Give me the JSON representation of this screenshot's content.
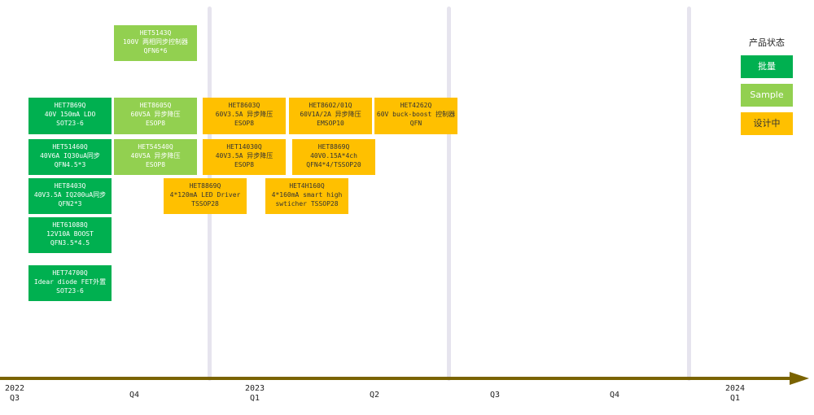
{
  "legend": {
    "title": "产品状态",
    "mass": "批量",
    "sample": "Sample",
    "design": "设计中",
    "colors": {
      "mass": "#00b050",
      "sample": "#92d050",
      "design": "#ffc000"
    }
  },
  "axis": {
    "ticks": [
      {
        "line1": "2022",
        "line2": "Q3"
      },
      {
        "line1": "",
        "line2": "Q4"
      },
      {
        "line1": "2023",
        "line2": "Q1"
      },
      {
        "line1": "",
        "line2": "Q2"
      },
      {
        "line1": "",
        "line2": "Q3"
      },
      {
        "line1": "",
        "line2": "Q4"
      },
      {
        "line1": "2024",
        "line2": "Q1"
      }
    ],
    "color": "#7a6300"
  },
  "products": [
    {
      "name": "HET5143Q",
      "spec": "100V 两相同步控制器",
      "pkg": "QFN6*6",
      "status": "sample"
    },
    {
      "name": "HET7B69Q",
      "spec": "40V 150mA LDO",
      "pkg": "SOT23-6",
      "status": "mass"
    },
    {
      "name": "HET8605Q",
      "spec": "60V5A 异步降压",
      "pkg": "ESOP8",
      "status": "sample"
    },
    {
      "name": "HET8603Q",
      "spec": "60V3.5A 异步降压",
      "pkg": "ESOP8",
      "status": "design"
    },
    {
      "name": "HET8602/01Q",
      "spec": "60V1A/2A 异步降压",
      "pkg": "EMSOP10",
      "status": "design"
    },
    {
      "name": "HET4262Q",
      "spec": "60V buck-boost 控制器",
      "pkg": "QFN",
      "status": "design"
    },
    {
      "name": "HET51460Q",
      "spec": "40V6A IQ30uA同步",
      "pkg": "QFN4.5*3",
      "status": "mass"
    },
    {
      "name": "HET54540Q",
      "spec": "40V5A 异步降压",
      "pkg": "ESOP8",
      "status": "sample"
    },
    {
      "name": "HET14030Q",
      "spec": "40V3.5A 异步降压",
      "pkg": "ESOP8",
      "status": "design"
    },
    {
      "name": "HET8869Q",
      "spec": "40V0.15A*4ch",
      "pkg": "QFN4*4/TSSOP20",
      "status": "design"
    },
    {
      "name": "HET8403Q",
      "spec": "40V3.5A IQ200uA同步",
      "pkg": "QFN2*3",
      "status": "mass"
    },
    {
      "name": "HET8869Q",
      "spec": "4*120mA LED Driver",
      "pkg": "TSSOP28",
      "status": "design"
    },
    {
      "name": "HET4H160Q",
      "spec": "4*160mA smart high",
      "pkg": "swticher  TSSOP28",
      "status": "design"
    },
    {
      "name": "HET61088Q",
      "spec": "12V10A BOOST",
      "pkg": "QFN3.5*4.5",
      "status": "mass"
    },
    {
      "name": "HET74700Q",
      "spec": "Idear diode FET外置",
      "pkg": "SOT23-6",
      "status": "mass"
    }
  ]
}
